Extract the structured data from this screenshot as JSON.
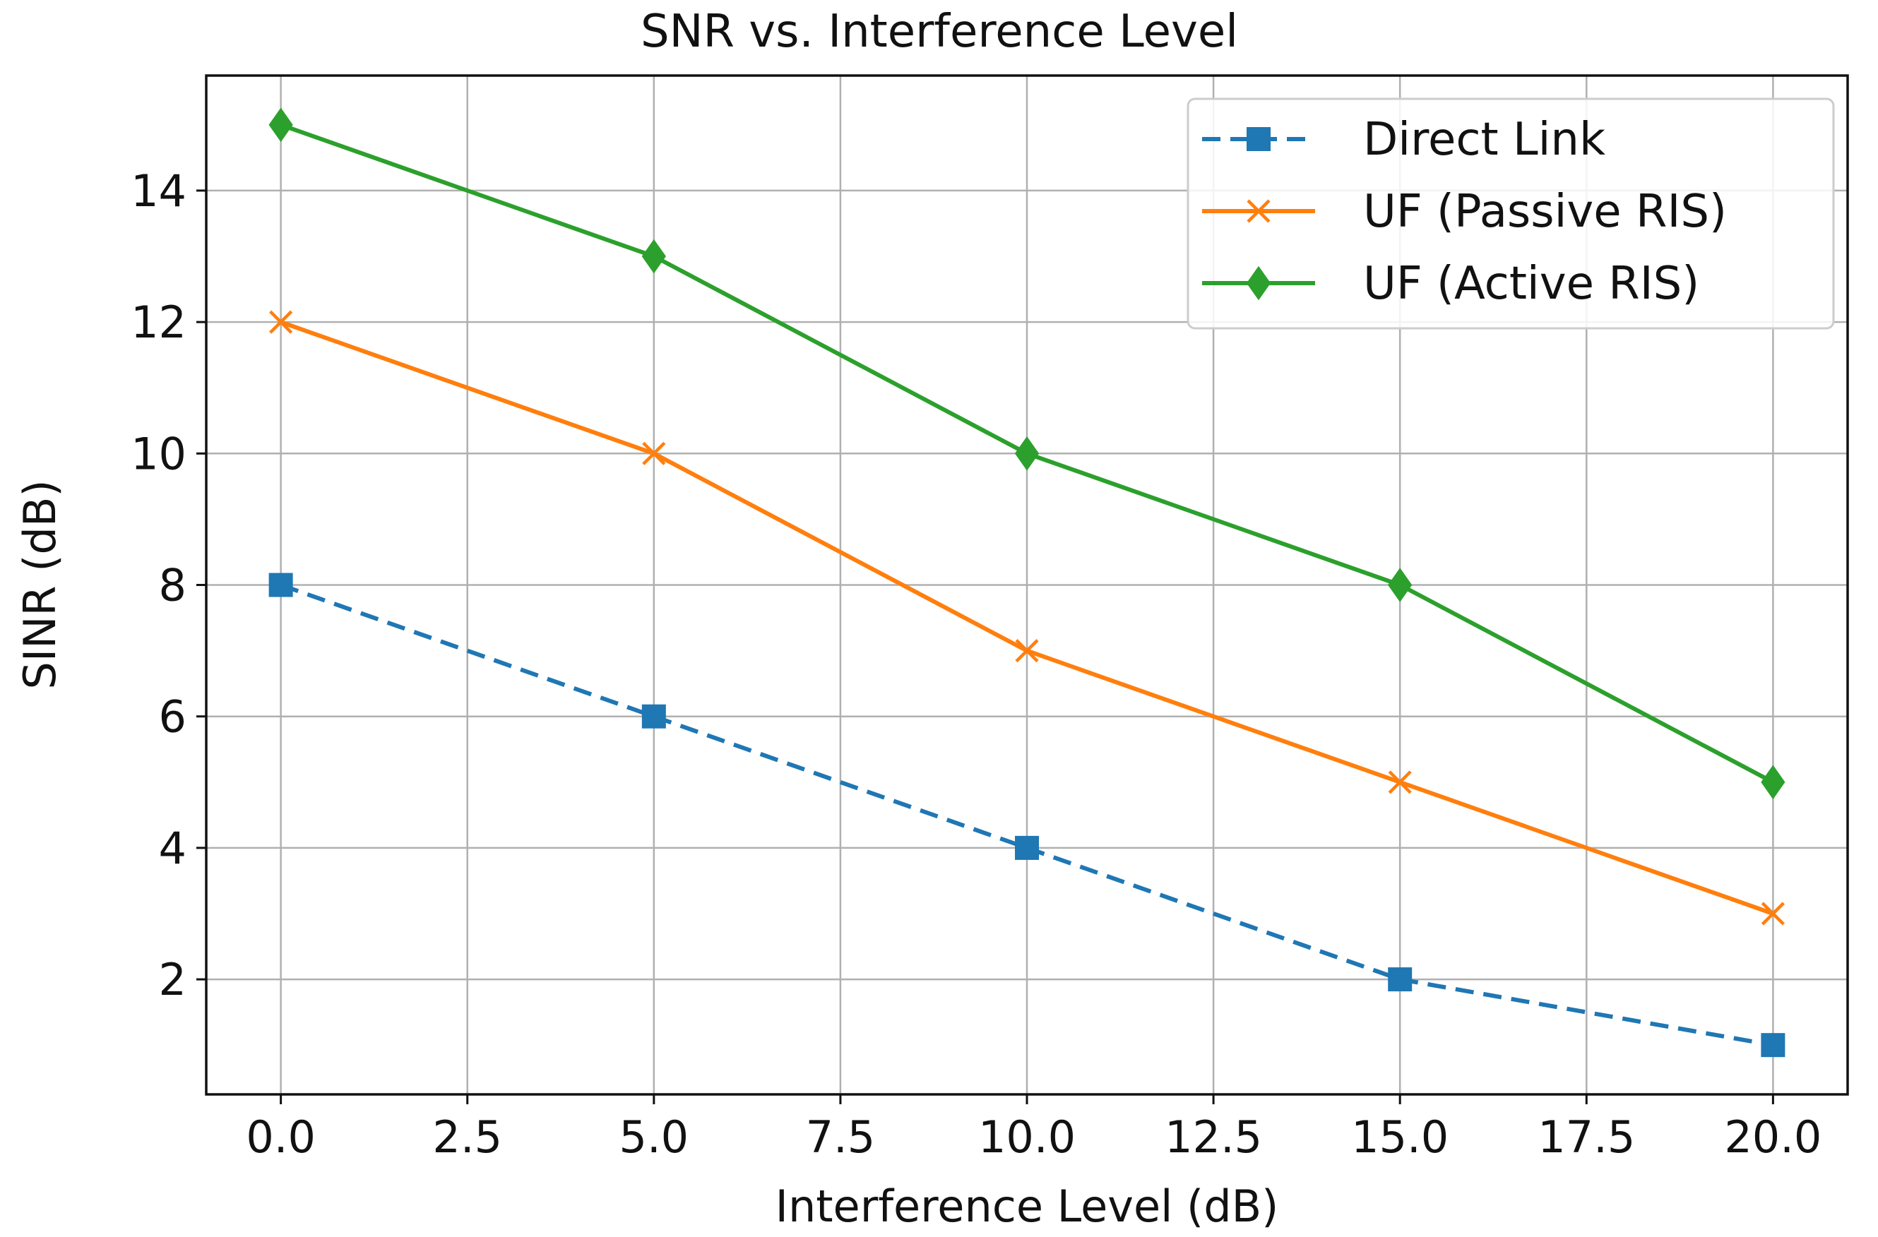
{
  "chart_data": {
    "type": "line",
    "title": "SNR vs. Interference Level",
    "xlabel": "Interference Level (dB)",
    "ylabel": "SINR (dB)",
    "xlim": [
      -1,
      21
    ],
    "ylim": [
      0.25,
      15.75
    ],
    "xticks": [
      0.0,
      2.5,
      5.0,
      7.5,
      10.0,
      12.5,
      15.0,
      17.5,
      20.0
    ],
    "xtick_labels": [
      "0.0",
      "2.5",
      "5.0",
      "7.5",
      "10.0",
      "12.5",
      "15.0",
      "17.5",
      "20.0"
    ],
    "yticks": [
      2,
      4,
      6,
      8,
      10,
      12,
      14
    ],
    "ytick_labels": [
      "2",
      "4",
      "6",
      "8",
      "10",
      "12",
      "14"
    ],
    "grid": true,
    "legend_position": "top-right",
    "x": [
      0,
      5,
      10,
      15,
      20
    ],
    "series": [
      {
        "name": "Direct Link",
        "values": [
          8,
          6,
          4,
          2,
          1
        ],
        "color": "#1f77b4",
        "linestyle": "dashed",
        "marker": "square"
      },
      {
        "name": "UF (Passive RIS)",
        "values": [
          12,
          10,
          7,
          5,
          3
        ],
        "color": "#ff7f0e",
        "linestyle": "solid",
        "marker": "x"
      },
      {
        "name": "UF (Active RIS)",
        "values": [
          15,
          13,
          10,
          8,
          5
        ],
        "color": "#2ca02c",
        "linestyle": "solid",
        "marker": "diamond"
      }
    ]
  }
}
